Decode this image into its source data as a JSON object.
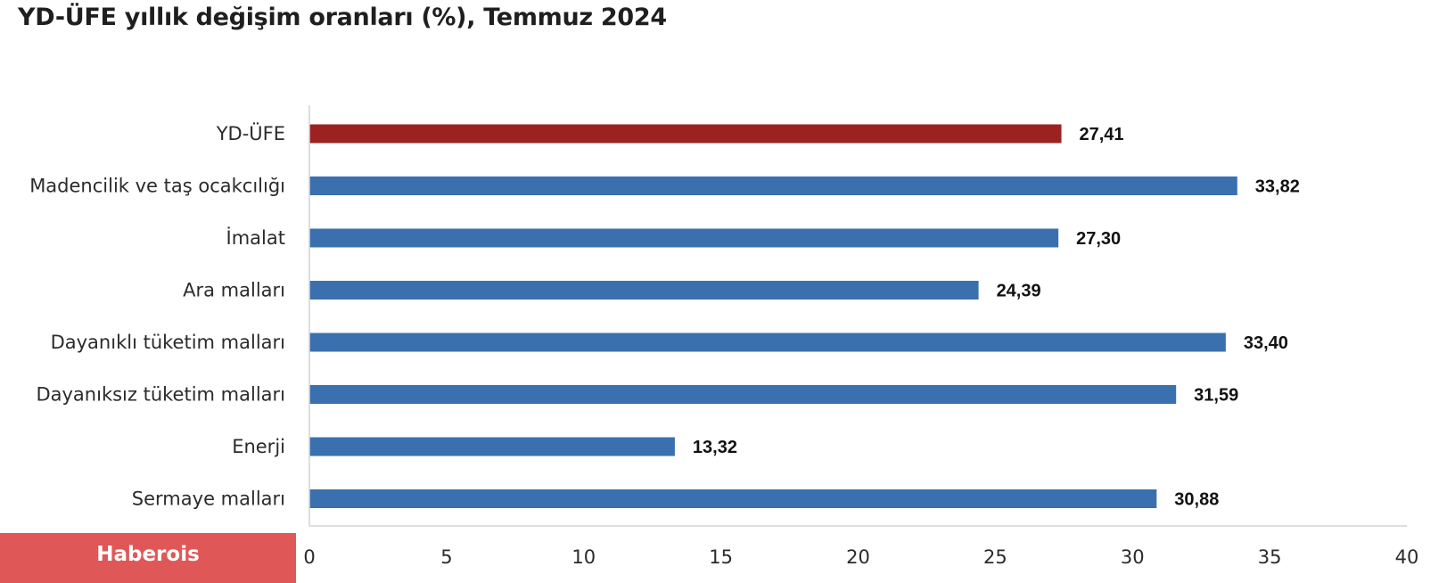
{
  "chart_data": {
    "type": "bar",
    "orientation": "horizontal",
    "title": "YD-ÜFE yıllık değişim oranları (%), Temmuz 2024",
    "categories": [
      "YD-ÜFE",
      "Madencilik ve taş ocakcılığı",
      "İmalat",
      "Ara malları",
      "Dayanıklı tüketim malları",
      "Dayanıksız tüketim malları",
      "Enerji",
      "Sermaye malları"
    ],
    "values": [
      27.41,
      33.82,
      27.3,
      24.39,
      33.4,
      31.59,
      13.32,
      30.88
    ],
    "value_labels": [
      "27,41",
      "33,82",
      "27,30",
      "24,39",
      "33,40",
      "31,59",
      "13,32",
      "30,88"
    ],
    "colors": [
      "#9c2222",
      "#3a70ad",
      "#3a70ad",
      "#3a70ad",
      "#3a70ad",
      "#3a70ad",
      "#3a70ad",
      "#3a70ad"
    ],
    "xlim": [
      0,
      40
    ],
    "xticks": [
      0,
      5,
      10,
      15,
      20,
      25,
      30,
      35,
      40
    ],
    "grid": false,
    "legend": "none"
  },
  "watermark": {
    "text": "Haberois",
    "color": "#e05757"
  }
}
